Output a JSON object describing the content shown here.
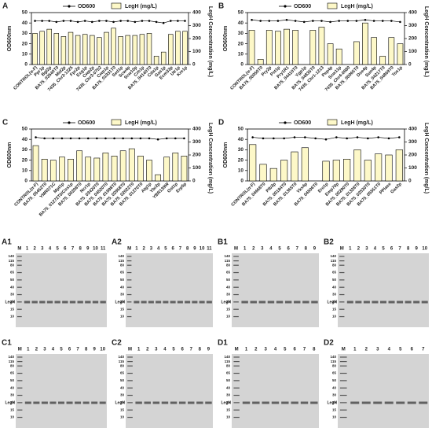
{
  "chart_data": [
    {
      "type": "bar",
      "panel": "A",
      "ylabel": "OD600nm",
      "y2label": "LegH Concentration (mg/L)",
      "ylim": [
        0,
        50
      ],
      "yticks": [
        0,
        10,
        20,
        30,
        40,
        50
      ],
      "y2lim": [
        0,
        400
      ],
      "y2ticks": [
        0,
        100,
        200,
        300,
        400
      ],
      "categories": [
        "CONTROL(α-F)",
        "Ppr1p",
        "Bgl2p",
        "BA75_03540T0",
        "Mid2p",
        "7435_Chr3-1225",
        "Fpr2p",
        "Exg1p",
        "Cwp2p",
        "7435_Chr3-0752",
        "Cwp1p",
        "BA75_01931T0",
        "Sed1p",
        "Scw4p",
        "Scw10p",
        "Crh1p",
        "BA75_04140T0",
        "Cda1p",
        "Gas1p",
        "Ecm33p",
        "Utr1p",
        "Kre1p"
      ],
      "series": [
        {
          "name": "OD600",
          "type": "line",
          "color": "#000000",
          "values": [
            42,
            42,
            42,
            41,
            42,
            42,
            41,
            42,
            41,
            42,
            42,
            41,
            42,
            42,
            41,
            42,
            42,
            41,
            40,
            42,
            42,
            42
          ]
        },
        {
          "name": "LegH (mg/L)",
          "type": "bar",
          "axis": "y2",
          "color": "#fdf8c8",
          "values": [
            240,
            256,
            272,
            240,
            216,
            248,
            224,
            232,
            224,
            208,
            248,
            280,
            216,
            224,
            224,
            232,
            240,
            64,
            96,
            232,
            256,
            256
          ]
        }
      ]
    },
    {
      "type": "bar",
      "panel": "B",
      "ylabel": "OD600nm",
      "y2label": "LegH Concentration (mg/L)",
      "ylim": [
        0,
        50
      ],
      "yticks": [
        0,
        10,
        20,
        30,
        40,
        50
      ],
      "y2lim": [
        0,
        400
      ],
      "y2ticks": [
        0,
        100,
        200,
        300,
        400
      ],
      "categories": [
        "CONTROL(α-F)",
        "BA75_00050T0",
        "Pry2p",
        "Pst1p",
        "Pry1R1",
        "BA75_04410T0",
        "Ygp1p",
        "BA75_04835T0",
        "7435_Chr1-1213",
        "Pep4p",
        "Scw11p",
        "7435_Chr4-0680",
        "BA75_00065T0",
        "Dse4p",
        "Sun4p",
        "BA75_04217T0",
        "BA75_04869T0",
        "Tos1p"
      ],
      "series": [
        {
          "name": "OD600",
          "type": "line",
          "color": "#000000",
          "values": [
            43,
            42,
            42,
            42,
            43,
            42,
            41,
            42,
            42,
            41,
            42,
            42,
            42,
            43,
            42,
            42,
            42,
            41
          ]
        },
        {
          "name": "LegH (mg/L)",
          "type": "bar",
          "axis": "y2",
          "color": "#fdf8c8",
          "values": [
            264,
            40,
            264,
            256,
            272,
            264,
            0,
            264,
            288,
            160,
            120,
            0,
            176,
            320,
            208,
            64,
            208,
            160
          ]
        }
      ]
    },
    {
      "type": "bar",
      "panel": "C",
      "ylabel": "OD600nm",
      "y2label": "LegH Concentration (mg/L)",
      "ylim": [
        0,
        50
      ],
      "yticks": [
        0,
        10,
        20,
        30,
        40,
        50
      ],
      "y2lim": [
        0,
        400
      ],
      "y2ticks": [
        0,
        100,
        200,
        300,
        400
      ],
      "categories": [
        "CONTROL(α-F)",
        "BA75_05452T0",
        "YMR071C",
        "Mpt1p",
        "BA75_01272T0/Cos1p",
        "BA75_00208T0",
        "Ncr1p",
        "BA75_03420T0",
        "BA75_04520T0",
        "BA75_01998T0",
        "BA75_02958T0",
        "BA75_02022T0",
        "BA75_01270T0",
        "Atg1p",
        "Ybr2p",
        "YBR139W",
        "Ost1p",
        "Erp5p"
      ],
      "series": [
        {
          "name": "OD600",
          "type": "line",
          "color": "#000000",
          "values": [
            42,
            41,
            41,
            41,
            41,
            41,
            41,
            41,
            41,
            41,
            41,
            41,
            41,
            41,
            40,
            41,
            41,
            41
          ]
        },
        {
          "name": "LegH (mg/L)",
          "type": "bar",
          "axis": "y2",
          "color": "#fdf8c8",
          "values": [
            272,
            168,
            160,
            184,
            168,
            232,
            184,
            176,
            216,
            192,
            232,
            248,
            192,
            160,
            48,
            184,
            216,
            192
          ]
        }
      ]
    },
    {
      "type": "bar",
      "panel": "D",
      "ylabel": "OD600nm",
      "y2label": "LegH Concentration (mg/L)",
      "ylim": [
        0,
        50
      ],
      "yticks": [
        0,
        10,
        20,
        30,
        40,
        50
      ],
      "y2lim": [
        0,
        400
      ],
      "y2ticks": [
        0,
        100,
        200,
        300,
        400
      ],
      "categories": [
        "CONTROL(α-F)",
        "BA75_04668T0",
        "Plb3p",
        "BA75_00184T0",
        "BA75_01365T0",
        "Ykx4p",
        "BA75_04506T0",
        "Ero1p",
        "Emp70p",
        "BA75_00290T0",
        "BA75_01328T0",
        "BA75_02530T0",
        "BA75_05551T0",
        "PPIase",
        "Gas2p"
      ],
      "series": [
        {
          "name": "OD600",
          "type": "line",
          "color": "#000000",
          "values": [
            42,
            41,
            41,
            41,
            42,
            42,
            41,
            40,
            42,
            41,
            42,
            41,
            42,
            41,
            42
          ]
        },
        {
          "name": "LegH (mg/L)",
          "type": "bar",
          "axis": "y2",
          "color": "#fdf8c8",
          "values": [
            280,
            128,
            96,
            160,
            224,
            256,
            0,
            152,
            160,
            168,
            240,
            160,
            208,
            200,
            240
          ]
        }
      ]
    }
  ],
  "gels": {
    "marker_lane": "M",
    "band_label": "LegH",
    "markers": [
      "140",
      "115",
      "80",
      "65",
      "50",
      "40",
      "30",
      "25",
      "15",
      "10"
    ],
    "panels": [
      {
        "label": "A1",
        "lanes": [
          "1",
          "2",
          "3",
          "4",
          "5",
          "6",
          "7",
          "8",
          "9",
          "10",
          "11"
        ]
      },
      {
        "label": "A2",
        "lanes": [
          "1",
          "2",
          "3",
          "4",
          "5",
          "6",
          "7",
          "8",
          "9",
          "10",
          "11"
        ]
      },
      {
        "label": "B1",
        "lanes": [
          "1",
          "2",
          "3",
          "4",
          "5",
          "6",
          "7",
          "8",
          "9"
        ]
      },
      {
        "label": "B2",
        "lanes": [
          "1",
          "2",
          "3",
          "4",
          "5",
          "6",
          "7",
          "8",
          "9",
          "10"
        ]
      },
      {
        "label": "C1",
        "lanes": [
          "1",
          "2",
          "3",
          "4",
          "5",
          "6",
          "7",
          "8",
          "9",
          "10"
        ]
      },
      {
        "label": "C2",
        "lanes": [
          "1",
          "2",
          "3",
          "4",
          "5",
          "6",
          "7",
          "8",
          "9"
        ]
      },
      {
        "label": "D1",
        "lanes": [
          "1",
          "2",
          "3",
          "4",
          "5",
          "6",
          "7",
          "8"
        ]
      },
      {
        "label": "D2",
        "lanes": [
          "1",
          "2",
          "3",
          "4",
          "5",
          "6",
          "7"
        ]
      }
    ]
  }
}
